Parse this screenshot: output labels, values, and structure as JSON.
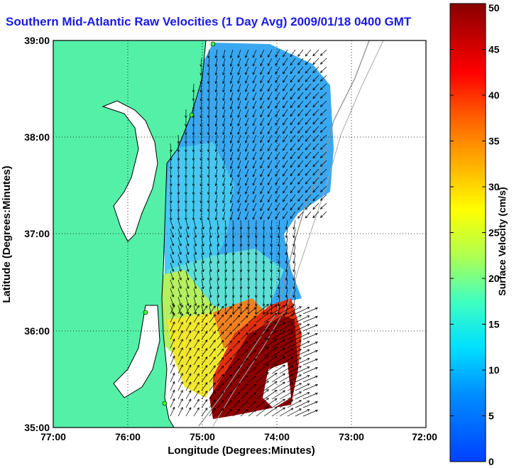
{
  "title": "Southern Mid-Atlantic Raw Velocities (1 Day Avg) 2009/01/18 0400 GMT",
  "axes": {
    "xlabel": "Longitude (Degrees:Minutes)",
    "ylabel": "Latitude (Degrees:Minutes)",
    "xticks": [
      "77:00",
      "76:00",
      "75:00",
      "74:00",
      "73:00",
      "72:00"
    ],
    "yticks": [
      "39:00",
      "38:00",
      "37:00",
      "36:00",
      "35:00"
    ]
  },
  "colorbar": {
    "label": "Surface Velocity (cm/s)",
    "ticks": [
      "50",
      "45",
      "40",
      "35",
      "30",
      "25",
      "20",
      "15",
      "10",
      "5",
      "0"
    ],
    "range": [
      0,
      50
    ]
  },
  "colors": {
    "land": "#55f0a8",
    "coast": "#000000",
    "title": "#1a1ae6"
  }
}
